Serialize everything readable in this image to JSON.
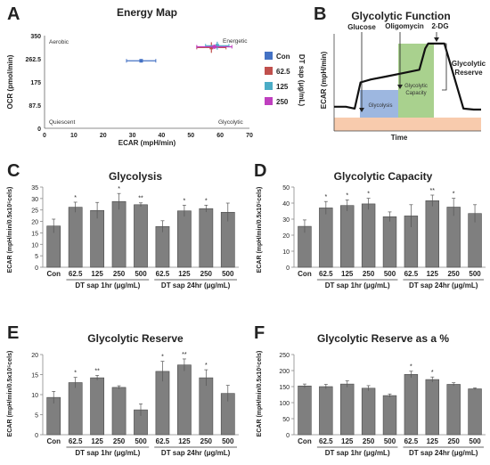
{
  "colors": {
    "bar_fill": "#7f7f7f",
    "bar_stroke": "#4a4a4a",
    "con": "#4472c4",
    "dt62": "#c0504d",
    "dt125": "#4bacc6",
    "dt250": "#bf3fbf",
    "glyco_region": "#9db7e0",
    "capacity_region": "#a9d18e",
    "baseline_region": "#f8cbad"
  },
  "panels": {
    "A": {
      "letter": "A",
      "title": "Energy Map",
      "xlabel": "ECAR (mpH/min)",
      "ylabel": "OCR (pmol/min)",
      "xticks": [
        "0",
        "10",
        "20",
        "30",
        "40",
        "50",
        "60",
        "70"
      ],
      "yticks": [
        "0",
        "87.5",
        "175",
        "262.5",
        "350"
      ],
      "quadrants": {
        "aerobic": "Aerobic",
        "energetic": "Energetic",
        "quiescent": "Quiescent",
        "glycolytic": "Glycolytic"
      },
      "legend_title": "DT sap (μg/mL)",
      "legend": [
        "Con",
        "62.5",
        "125",
        "250"
      ]
    },
    "B": {
      "letter": "B",
      "title": "Glycolytic Function",
      "ylabel": "ECAR (mpH/min)",
      "xlabel": "Time",
      "injections": [
        "Glucose",
        "Oligomycin",
        "2-DG"
      ],
      "regions": {
        "glycolysis": "Glycolysis",
        "capacity_line1": "Glycolytic",
        "capacity_line2": "Capacity",
        "reserve_line1": "Glycolytic",
        "reserve_line2": "Reserve"
      }
    },
    "C": {
      "letter": "C",
      "title": "Glycolysis",
      "ylabel": "ECAR (mpH/min/0.5x10⁵cels)"
    },
    "D": {
      "letter": "D",
      "title": "Glycolytic Capacity",
      "ylabel": "ECAR (mpH/min/0.5x10⁵cels)"
    },
    "E": {
      "letter": "E",
      "title": "Glycolytic Reserve",
      "ylabel": "ECAR (mpH/min/0.5x10⁵cels)"
    },
    "F": {
      "letter": "F",
      "title": "Glycolytic Reserve as a %",
      "ylabel": "ECAR (mpH/min/0.5x10⁵cels)"
    }
  },
  "bar_common": {
    "categories": [
      "Con",
      "62.5",
      "125",
      "250",
      "500",
      "62.5",
      "125",
      "250",
      "500"
    ],
    "group_labels": [
      "DT sap 1hr (μg/mL)",
      "DT sap 24hr (μg/mL)"
    ]
  },
  "chart_data": [
    {
      "type": "scatter",
      "panel": "A",
      "title": "Energy Map",
      "xlabel": "ECAR (mpH/min)",
      "ylabel": "OCR (pmol/min)",
      "xlim": [
        0,
        70
      ],
      "ylim": [
        0,
        350
      ],
      "series": [
        {
          "name": "Con",
          "x": 33,
          "y": 255,
          "xerr": 5,
          "yerr": 4
        },
        {
          "name": "62.5",
          "x": 57,
          "y": 305,
          "xerr": 5,
          "yerr": 20
        },
        {
          "name": "125",
          "x": 59,
          "y": 312,
          "xerr": 4,
          "yerr": 15
        },
        {
          "name": "250",
          "x": 58,
          "y": 308,
          "xerr": 6,
          "yerr": 8
        }
      ]
    },
    {
      "type": "line",
      "panel": "B",
      "title": "Glycolytic Function",
      "xlabel": "Time",
      "ylabel": "ECAR (mpH/min)",
      "x": [
        0,
        8,
        14,
        18,
        25,
        35,
        45,
        58,
        62,
        64,
        75,
        88,
        95,
        100
      ],
      "y": [
        2.5,
        2.5,
        2.3,
        5.0,
        5.3,
        5.6,
        5.9,
        6.3,
        8.5,
        9.0,
        9.0,
        2.3,
        2.2,
        2.2
      ]
    },
    {
      "type": "bar",
      "panel": "C",
      "title": "Glycolysis",
      "ylabel": "ECAR (mpH/min/0.5x10⁵cels)",
      "categories": [
        "Con",
        "62.5",
        "125",
        "250",
        "500",
        "62.5",
        "125",
        "250",
        "500"
      ],
      "values": [
        18,
        26.2,
        24.8,
        28.7,
        27.3,
        17.8,
        24.6,
        25.6,
        24.0
      ],
      "errors": [
        3.0,
        2.2,
        3.5,
        3.5,
        0.8,
        2.5,
        2.5,
        1.5,
        4.0
      ],
      "sig": [
        "",
        "*",
        "",
        "*",
        "**",
        "",
        "*",
        "*",
        ""
      ],
      "ylim": [
        0,
        35
      ],
      "yticks": [
        0,
        5,
        10,
        15,
        20,
        25,
        30,
        35
      ]
    },
    {
      "type": "bar",
      "panel": "D",
      "title": "Glycolytic Capacity",
      "ylabel": "ECAR (mpH/min/0.5x10⁵cels)",
      "categories": [
        "Con",
        "62.5",
        "125",
        "250",
        "500",
        "62.5",
        "125",
        "250",
        "500"
      ],
      "values": [
        25.5,
        37.0,
        38.5,
        39.5,
        31.5,
        32.0,
        41.5,
        37.5,
        33.5
      ],
      "errors": [
        4.0,
        4.0,
        3.5,
        3.5,
        3.0,
        7.0,
        3.5,
        5.5,
        5.5
      ],
      "sig": [
        "",
        "*",
        "*",
        "*",
        "",
        "",
        "**",
        "*",
        ""
      ],
      "ylim": [
        0,
        50
      ],
      "yticks": [
        0,
        10,
        20,
        30,
        40,
        50
      ]
    },
    {
      "type": "bar",
      "panel": "E",
      "title": "Glycolytic Reserve",
      "ylabel": "ECAR (mpH/min/0.5x10⁵cels)",
      "categories": [
        "Con",
        "62.5",
        "125",
        "250",
        "500",
        "62.5",
        "125",
        "250",
        "500"
      ],
      "values": [
        9.3,
        13.0,
        14.2,
        11.8,
        6.2,
        15.8,
        17.4,
        14.2,
        10.3
      ],
      "errors": [
        1.5,
        1.3,
        0.6,
        0.4,
        1.5,
        2.5,
        1.5,
        2.0,
        2.0
      ],
      "sig": [
        "",
        "*",
        "**",
        "",
        "",
        "*",
        "**",
        "*",
        ""
      ],
      "ylim": [
        0,
        20
      ],
      "yticks": [
        0,
        5,
        10,
        15,
        20
      ]
    },
    {
      "type": "bar",
      "panel": "F",
      "title": "Glycolytic Reserve as a %",
      "ylabel": "ECAR (mpH/min/0.5x10⁵cels)",
      "categories": [
        "Con",
        "62.5",
        "125",
        "250",
        "500",
        "62.5",
        "125",
        "250",
        "500"
      ],
      "values": [
        152,
        150,
        158,
        145,
        122,
        188,
        172,
        157,
        143
      ],
      "errors": [
        6,
        7,
        10,
        8,
        5,
        10,
        8,
        5,
        3
      ],
      "sig": [
        "",
        "",
        "",
        "",
        "",
        "*",
        "*",
        "",
        ""
      ],
      "ylim": [
        0,
        250
      ],
      "yticks": [
        0,
        50,
        100,
        150,
        200,
        250
      ]
    }
  ]
}
